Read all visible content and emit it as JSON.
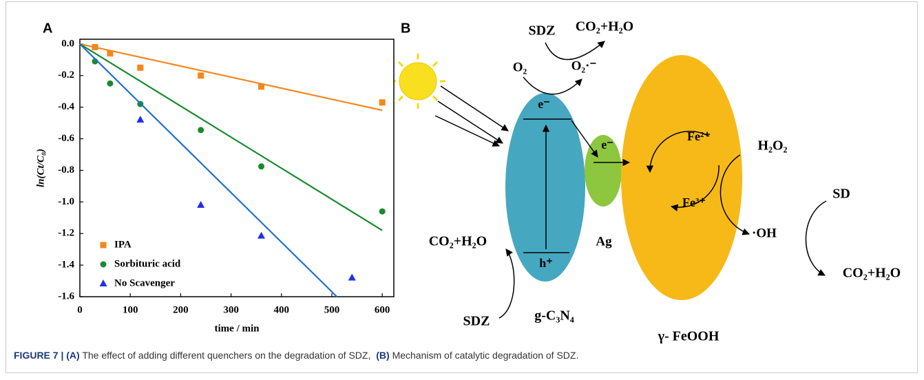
{
  "chart_data": {
    "type": "scatter",
    "panel_label": "A",
    "x_label": "time / min",
    "y_label": "ln(Ct/C₀)",
    "xlim": [
      0,
      623
    ],
    "xticks": [
      0,
      100,
      200,
      300,
      400,
      500,
      600
    ],
    "ylim": [
      -1.6,
      0.03
    ],
    "yticks": [
      {
        "value": 0,
        "label": "0.0"
      },
      -0.2,
      -0.4,
      -0.6,
      -0.8,
      {
        "value": -1,
        "label": "-1.0"
      },
      -1.2,
      -1.4,
      -1.6
    ],
    "legend": "lower left",
    "series": [
      {
        "name": "IPA",
        "color": "#f7861c",
        "marker": "square",
        "x": [
          30,
          60,
          120,
          240,
          360,
          600
        ],
        "values": [
          -0.02,
          -0.06,
          -0.15,
          -0.2,
          -0.27,
          -0.37
        ],
        "fit": {
          "x": [
            0,
            600
          ],
          "values": [
            0,
            -0.42
          ]
        }
      },
      {
        "name": "Sorbituric acid",
        "color": "#1a8a2e",
        "marker": "circle",
        "x": [
          30,
          60,
          120,
          240,
          360,
          600
        ],
        "values": [
          -0.11,
          -0.25,
          -0.38,
          -0.545,
          -0.775,
          -1.06
        ],
        "fit": {
          "x": [
            0,
            600
          ],
          "values": [
            0,
            -1.18
          ]
        }
      },
      {
        "name": "No Scavenger",
        "color": "#1f2ff0",
        "line_color": "#1e6fd0",
        "marker": "triangle",
        "x": [
          120,
          240,
          360,
          540
        ],
        "values": [
          -0.48,
          -1.02,
          -1.215,
          -1.48
        ],
        "fit": {
          "x": [
            0,
            510
          ],
          "values": [
            0,
            -1.6
          ]
        }
      }
    ]
  },
  "diagram": {
    "panel_label": "B",
    "texts": {
      "sdz_top": "SDZ",
      "co2_top": "CO₂+H₂O",
      "o2": "O₂",
      "o2_radical": "O₂·⁻",
      "e_cn": "e⁻",
      "h_cn": "h⁺",
      "e_ag": "e⁻",
      "fe2": "Fe²⁺",
      "fe3": "Fe³⁺",
      "h2o2": "H₂O₂",
      "oh": "·OH",
      "sd": "SD",
      "co2_right": "CO₂+H₂O",
      "co2_left": "CO₂+H₂O",
      "sdz_bottom": "SDZ",
      "cn_label": "g-C₃N₄",
      "ag_label": "Ag",
      "feooh_label": "γ- FeOOH"
    }
  },
  "caption": {
    "figure": "FIGURE 7 |",
    "a_label": "(A)",
    "a_text": "The effect of adding different quenchers on the degradation of SDZ,",
    "b_label": "(B)",
    "b_text": "Mechanism of catalytic degradation of SDZ."
  }
}
